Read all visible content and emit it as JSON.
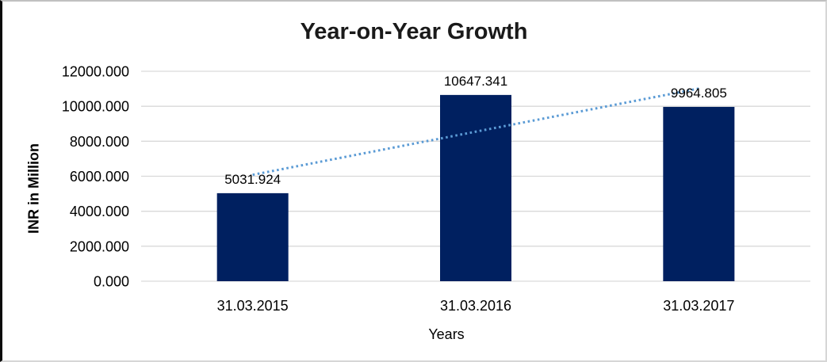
{
  "chart_data": {
    "type": "bar",
    "title": "Year-on-Year Growth",
    "xlabel": "Years",
    "ylabel": "INR in Million",
    "categories": [
      "31.03.2015",
      "31.03.2016",
      "31.03.2017"
    ],
    "values": [
      5031.924,
      10647.341,
      9964.805
    ],
    "value_labels": [
      "5031.924",
      "10647.341",
      "9964.805"
    ],
    "ylim": [
      0,
      12000
    ],
    "ytick_step": 2000,
    "ytick_labels": [
      "0.000",
      "2000.000",
      "4000.000",
      "6000.000",
      "8000.000",
      "10000.000",
      "12000.000"
    ],
    "grid": true,
    "legend": "none",
    "colors": {
      "bar": "#002060",
      "gridline": "#d9d9d9",
      "trendline": "#5b9bd5",
      "title_text": "#1a1a1a",
      "label_text": "#000000"
    },
    "trendline": {
      "type": "linear",
      "style": "dotted",
      "start_value": 6082,
      "end_value": 11014
    }
  }
}
